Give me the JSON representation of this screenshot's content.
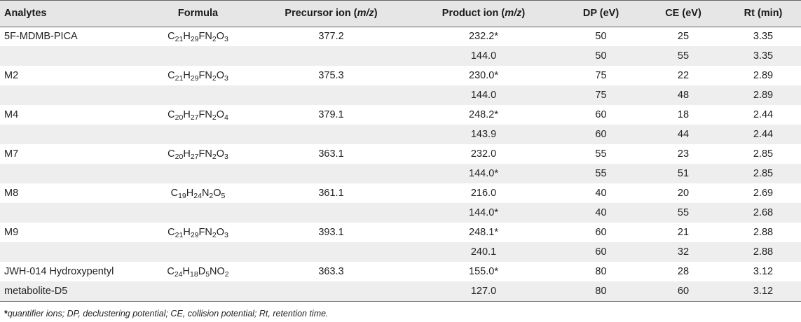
{
  "headers": {
    "analytes": "Analytes",
    "formula": "Formula",
    "precursor_prefix": "Precursor ion (",
    "precursor_unit": "m/z",
    "precursor_suffix": ")",
    "product_prefix": "Product ion (",
    "product_unit": "m/z",
    "product_suffix": ")",
    "dp": "DP (eV)",
    "ce": "CE (eV)",
    "rt": "Rt (min)"
  },
  "rows": [
    {
      "analyte": "5F-MDMB-PICA",
      "formula": [
        [
          "C",
          ""
        ],
        [
          "21",
          "sub"
        ],
        [
          "H",
          ""
        ],
        [
          "29",
          "sub"
        ],
        [
          "FN",
          ""
        ],
        [
          "2",
          "sub"
        ],
        [
          "O",
          ""
        ],
        [
          "3",
          "sub"
        ]
      ],
      "precursor": "377.2",
      "product": "232.2*",
      "dp": "50",
      "ce": "25",
      "rt": "3.35"
    },
    {
      "analyte": "",
      "formula": [],
      "precursor": "",
      "product": "144.0",
      "dp": "50",
      "ce": "55",
      "rt": "3.35"
    },
    {
      "analyte": "M2",
      "formula": [
        [
          "C",
          ""
        ],
        [
          "21",
          "sub"
        ],
        [
          "H",
          ""
        ],
        [
          "29",
          "sub"
        ],
        [
          "FN",
          ""
        ],
        [
          "2",
          "sub"
        ],
        [
          "O",
          ""
        ],
        [
          "3",
          "sub"
        ]
      ],
      "precursor": "375.3",
      "product": "230.0*",
      "dp": "75",
      "ce": "22",
      "rt": "2.89"
    },
    {
      "analyte": "",
      "formula": [],
      "precursor": "",
      "product": "144.0",
      "dp": "75",
      "ce": "48",
      "rt": "2.89"
    },
    {
      "analyte": "M4",
      "formula": [
        [
          "C",
          ""
        ],
        [
          "20",
          "sub"
        ],
        [
          "H",
          ""
        ],
        [
          "27",
          "sub"
        ],
        [
          "FN",
          ""
        ],
        [
          "2",
          "sub"
        ],
        [
          "O",
          ""
        ],
        [
          "4",
          "sub"
        ]
      ],
      "precursor": "379.1",
      "product": "248.2*",
      "dp": "60",
      "ce": "18",
      "rt": "2.44"
    },
    {
      "analyte": "",
      "formula": [],
      "precursor": "",
      "product": "143.9",
      "dp": "60",
      "ce": "44",
      "rt": "2.44"
    },
    {
      "analyte": "M7",
      "formula": [
        [
          "C",
          ""
        ],
        [
          "20",
          "sub"
        ],
        [
          "H",
          ""
        ],
        [
          "27",
          "sub"
        ],
        [
          "FN",
          ""
        ],
        [
          "2",
          "sub"
        ],
        [
          "O",
          ""
        ],
        [
          "3",
          "sub"
        ]
      ],
      "precursor": "363.1",
      "product": "232.0",
      "dp": "55",
      "ce": "23",
      "rt": "2.85"
    },
    {
      "analyte": "",
      "formula": [],
      "precursor": "",
      "product": "144.0*",
      "dp": "55",
      "ce": "51",
      "rt": "2.85"
    },
    {
      "analyte": "M8",
      "formula": [
        [
          "C",
          ""
        ],
        [
          "19",
          "sub"
        ],
        [
          "H",
          ""
        ],
        [
          "24",
          "sub"
        ],
        [
          "N",
          ""
        ],
        [
          "2",
          "sub"
        ],
        [
          "O",
          ""
        ],
        [
          "5",
          "sub"
        ]
      ],
      "precursor": "361.1",
      "product": "216.0",
      "dp": "40",
      "ce": "20",
      "rt": "2.69"
    },
    {
      "analyte": "",
      "formula": [],
      "precursor": "",
      "product": "144.0*",
      "dp": "40",
      "ce": "55",
      "rt": "2.68"
    },
    {
      "analyte": "M9",
      "formula": [
        [
          "C",
          ""
        ],
        [
          "21",
          "sub"
        ],
        [
          "H",
          ""
        ],
        [
          "29",
          "sub"
        ],
        [
          "FN",
          ""
        ],
        [
          "2",
          "sub"
        ],
        [
          "O",
          ""
        ],
        [
          "3",
          "sub"
        ]
      ],
      "precursor": "393.1",
      "product": "248.1*",
      "dp": "60",
      "ce": "21",
      "rt": "2.88"
    },
    {
      "analyte": "",
      "formula": [],
      "precursor": "",
      "product": "240.1",
      "dp": "60",
      "ce": "32",
      "rt": "2.88"
    },
    {
      "analyte": "JWH-014 Hydroxypentyl",
      "formula": [
        [
          "C",
          ""
        ],
        [
          "24",
          "sub"
        ],
        [
          "H",
          ""
        ],
        [
          "18",
          "sub"
        ],
        [
          "D",
          ""
        ],
        [
          "5",
          "sub"
        ],
        [
          "NO",
          ""
        ],
        [
          "2",
          "sub"
        ]
      ],
      "precursor": "363.3",
      "product": "155.0*",
      "dp": "80",
      "ce": "28",
      "rt": "3.12"
    },
    {
      "analyte": "metabolite-D5",
      "formula": [],
      "precursor": "",
      "product": "127.0",
      "dp": "80",
      "ce": "60",
      "rt": "3.12"
    }
  ],
  "footnote": {
    "star": "*",
    "text": "quantifier ions; DP, declustering potential; CE, collision potential; Rt, retention time."
  }
}
